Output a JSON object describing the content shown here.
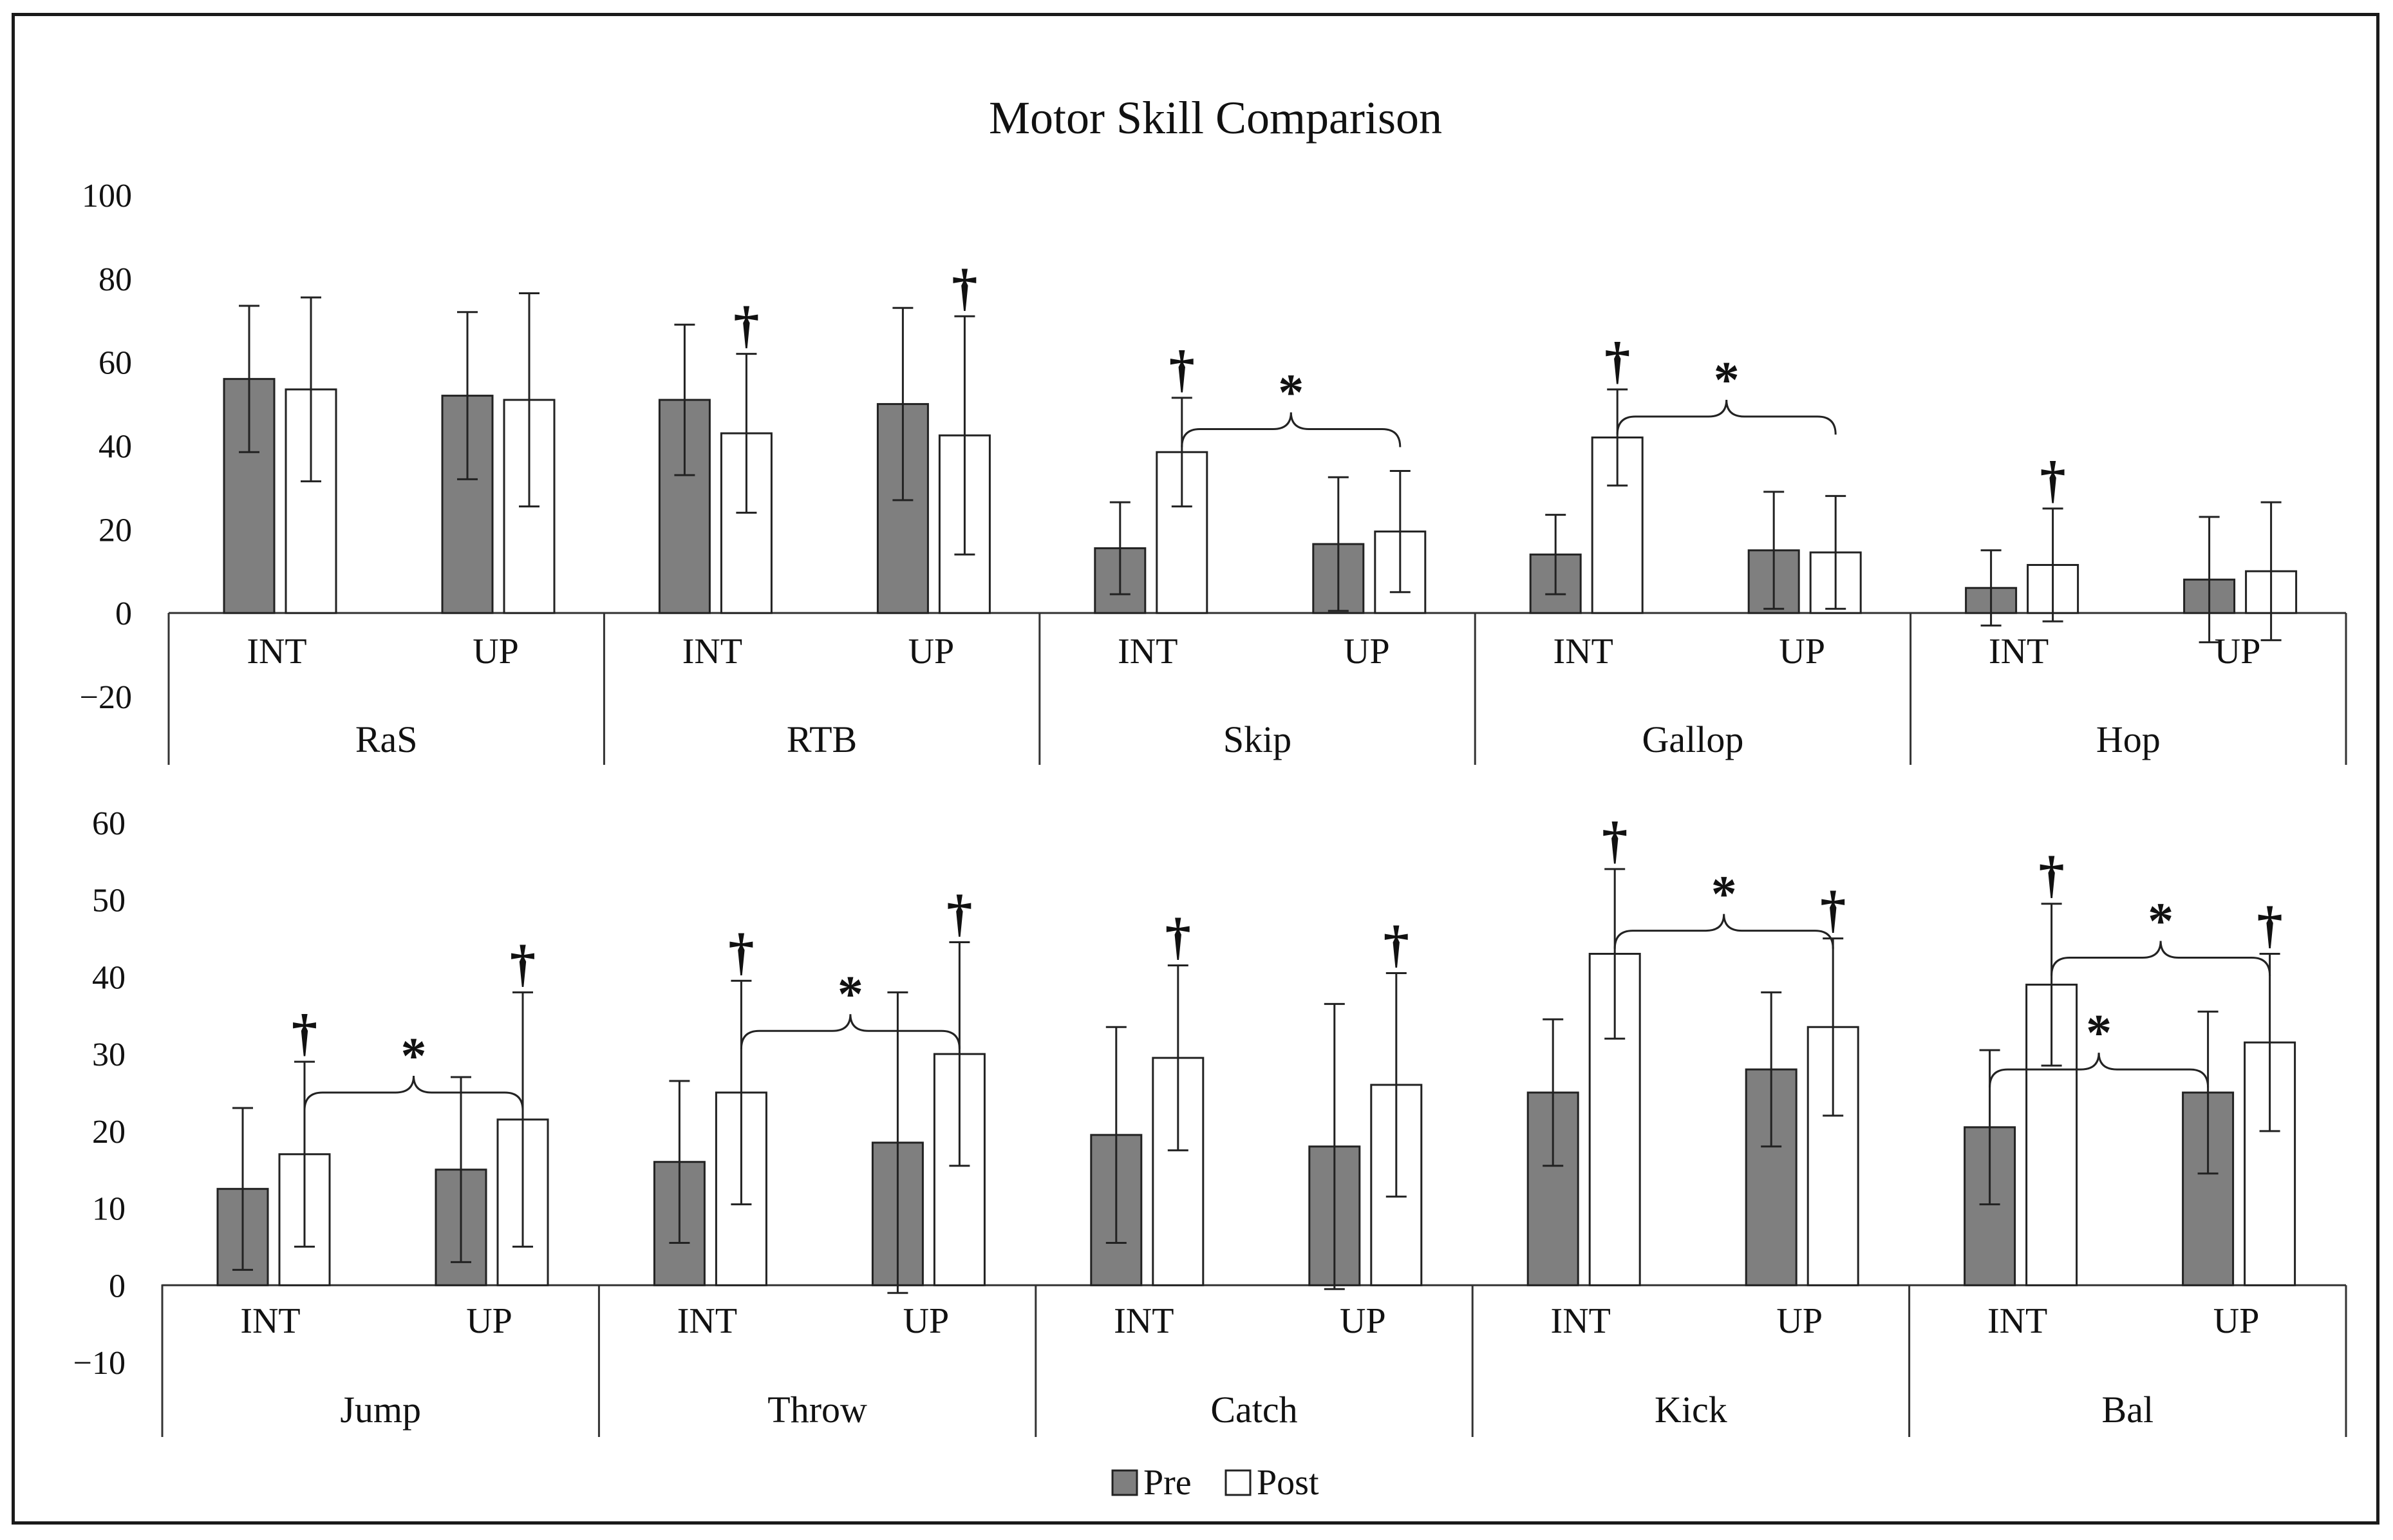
{
  "chart_data": {
    "title": "Motor Skill Comparison",
    "type": "bar",
    "legend": {
      "position": "bottom",
      "items": [
        {
          "name": "Pre",
          "color": "#7f7f7f"
        },
        {
          "name": "Post",
          "color": "#ffffff"
        }
      ]
    },
    "panels": [
      {
        "id": "top",
        "ylim": [
          -20,
          100
        ],
        "yticks": [
          "100",
          "80",
          "60",
          "40",
          "20",
          "0",
          "−20"
        ],
        "ytick_values": [
          100,
          80,
          60,
          40,
          20,
          0,
          -20
        ],
        "categories": [
          {
            "name": "RaS",
            "groups": [
              {
                "label": "INT",
                "pre": 56,
                "pre_err": 17.5,
                "post": 53.5,
                "post_err": 22,
                "pre_mark": "",
                "post_mark": ""
              },
              {
                "label": "UP",
                "pre": 52,
                "pre_err": 20,
                "post": 51,
                "post_err": 25.5,
                "pre_mark": "",
                "post_mark": ""
              }
            ]
          },
          {
            "name": "RTB",
            "groups": [
              {
                "label": "INT",
                "pre": 51,
                "pre_err": 18,
                "post": 43,
                "post_err": 19,
                "pre_mark": "",
                "post_mark": "†"
              },
              {
                "label": "UP",
                "pre": 50,
                "pre_err": 23,
                "post": 42.5,
                "post_err": 28.5,
                "pre_mark": "",
                "post_mark": "†"
              }
            ]
          },
          {
            "name": "Skip",
            "groups": [
              {
                "label": "INT",
                "pre": 15.5,
                "pre_err": 11,
                "post": 38.5,
                "post_err": 13,
                "pre_mark": "",
                "post_mark": "†"
              },
              {
                "label": "UP",
                "pre": 16.5,
                "pre_err": 16,
                "post": 19.5,
                "post_err": 14.5,
                "pre_mark": "",
                "post_mark": ""
              }
            ]
          },
          {
            "name": "Gallop",
            "groups": [
              {
                "label": "INT",
                "pre": 14,
                "pre_err": 9.5,
                "post": 42,
                "post_err": 11.5,
                "pre_mark": "",
                "post_mark": "†"
              },
              {
                "label": "UP",
                "pre": 15,
                "pre_err": 14,
                "post": 14.5,
                "post_err": 13.5,
                "pre_mark": "",
                "post_mark": ""
              }
            ]
          },
          {
            "name": "Hop",
            "groups": [
              {
                "label": "INT",
                "pre": 6,
                "pre_err": 9,
                "post": 11.5,
                "post_err": 13.5,
                "pre_mark": "",
                "post_mark": "†"
              },
              {
                "label": "UP",
                "pre": 8,
                "pre_err": 15,
                "post": 10,
                "post_err": 16.5,
                "pre_mark": "",
                "post_mark": ""
              }
            ]
          }
        ],
        "brackets": [
          {
            "category": 2,
            "from_group": 0,
            "to_group": 1,
            "y": 44,
            "label": "*"
          },
          {
            "category": 3,
            "from_group": 0,
            "to_group": 1,
            "y": 47,
            "label": "*"
          }
        ]
      },
      {
        "id": "bottom",
        "ylim": [
          -10,
          60
        ],
        "yticks": [
          "60",
          "50",
          "40",
          "30",
          "20",
          "10",
          "0",
          "−10"
        ],
        "ytick_values": [
          60,
          50,
          40,
          30,
          20,
          10,
          0,
          -10
        ],
        "categories": [
          {
            "name": "Jump",
            "groups": [
              {
                "label": "INT",
                "pre": 12.5,
                "pre_err": 10.5,
                "post": 17,
                "post_err": 12,
                "pre_mark": "",
                "post_mark": "†"
              },
              {
                "label": "UP",
                "pre": 15,
                "pre_err": 12,
                "post": 21.5,
                "post_err": 16.5,
                "pre_mark": "",
                "post_mark": "†"
              }
            ]
          },
          {
            "name": "Throw",
            "groups": [
              {
                "label": "INT",
                "pre": 16,
                "pre_err": 10.5,
                "post": 25,
                "post_err": 14.5,
                "pre_mark": "",
                "post_mark": "†"
              },
              {
                "label": "UP",
                "pre": 18.5,
                "pre_err": 19.5,
                "post": 30,
                "post_err": 14.5,
                "pre_mark": "",
                "post_mark": "†"
              }
            ]
          },
          {
            "name": "Catch",
            "groups": [
              {
                "label": "INT",
                "pre": 19.5,
                "pre_err": 14,
                "post": 29.5,
                "post_err": 12,
                "pre_mark": "",
                "post_mark": "†"
              },
              {
                "label": "UP",
                "pre": 18,
                "pre_err": 18.5,
                "post": 26,
                "post_err": 14.5,
                "pre_mark": "",
                "post_mark": "†"
              }
            ]
          },
          {
            "name": "Kick",
            "groups": [
              {
                "label": "INT",
                "pre": 25,
                "pre_err": 9.5,
                "post": 43,
                "post_err": 11,
                "pre_mark": "",
                "post_mark": "†"
              },
              {
                "label": "UP",
                "pre": 28,
                "pre_err": 10,
                "post": 33.5,
                "post_err": 11.5,
                "pre_mark": "",
                "post_mark": "†"
              }
            ]
          },
          {
            "name": "Bal",
            "groups": [
              {
                "label": "INT",
                "pre": 20.5,
                "pre_err": 10,
                "post": 39,
                "post_err": 10.5,
                "pre_mark": "",
                "post_mark": "†"
              },
              {
                "label": "UP",
                "pre": 25,
                "pre_err": 10.5,
                "post": 31.5,
                "post_err": 11.5,
                "pre_mark": "",
                "post_mark": "†"
              }
            ]
          }
        ],
        "brackets": [
          {
            "category": 0,
            "from_group": 0,
            "to_group": 1,
            "y": 25,
            "label": "*"
          },
          {
            "category": 1,
            "from_group": 0,
            "to_group": 1,
            "y": 33,
            "label": "*"
          },
          {
            "category": 3,
            "from_group": 0,
            "to_group": 1,
            "y": 46,
            "label": "*"
          },
          {
            "category": 4,
            "from_group": 0,
            "to_group": 1,
            "y": 42.5,
            "label": "*"
          },
          {
            "category": 4,
            "from_group": "0pre",
            "to_group": "1pre",
            "y": 28,
            "label": "*"
          }
        ]
      }
    ]
  }
}
